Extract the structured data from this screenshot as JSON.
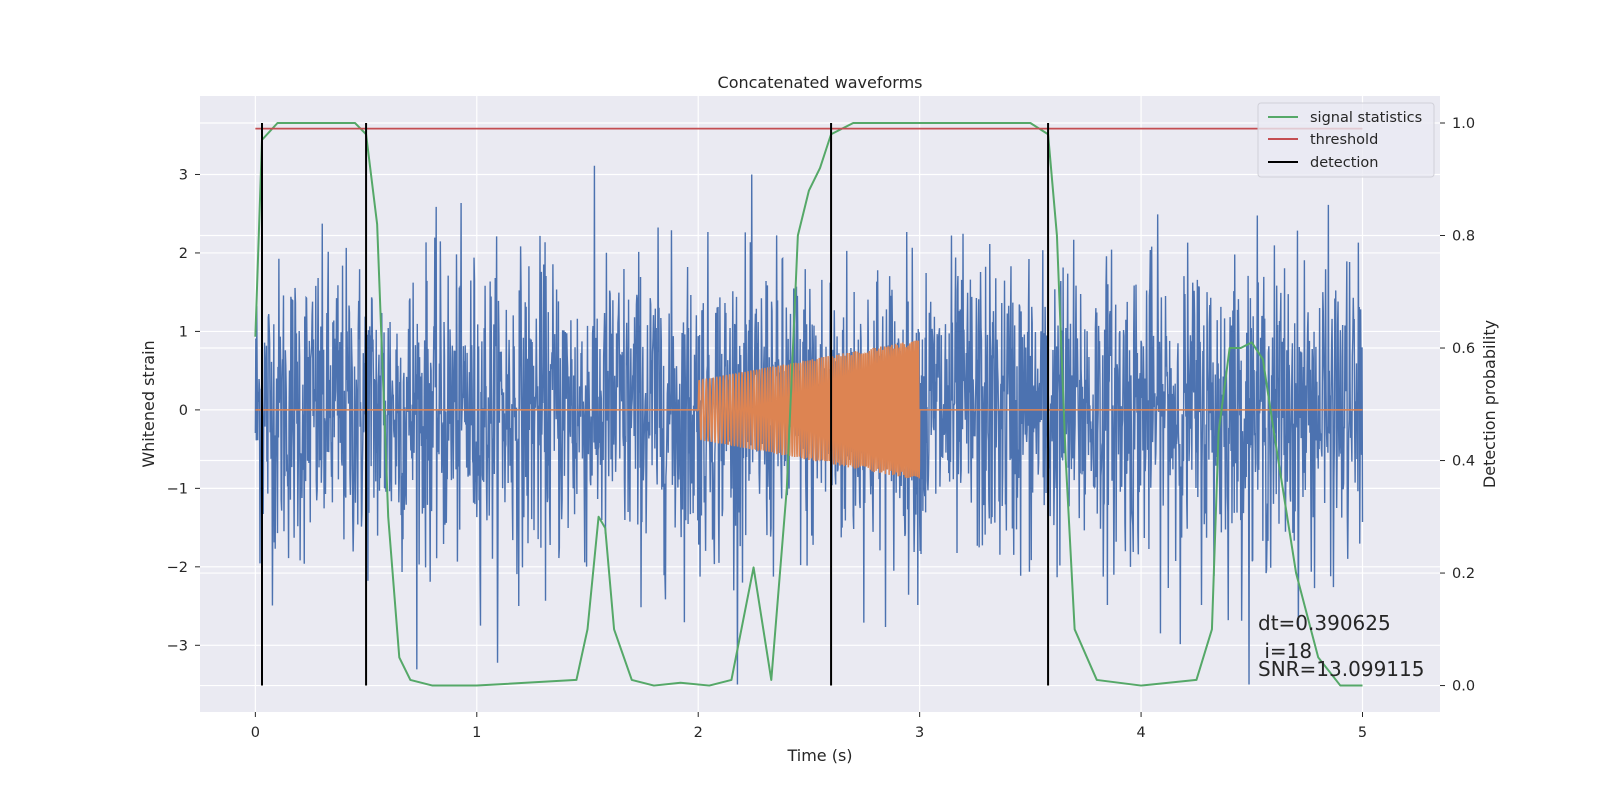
{
  "chart_data": {
    "type": "line",
    "title": "Concatenated waveforms",
    "xlabel": "Time (s)",
    "ylabel_left": "Whitened strain",
    "ylabel_right": "Detection probability",
    "xlim": [
      -0.25,
      5.35
    ],
    "ylim_left": [
      -3.85,
      4.0
    ],
    "ylim_right": [
      -0.047,
      1.048
    ],
    "xticks": [
      0,
      1,
      2,
      3,
      4,
      5
    ],
    "yticks_left": [
      -3,
      -2,
      -1,
      0,
      1,
      2,
      3
    ],
    "yticks_right": [
      0.0,
      0.2,
      0.4,
      0.6,
      0.8,
      1.0
    ],
    "grid": true,
    "legend_position": "top-right",
    "colors": {
      "plot_bg": "#eaeaf2",
      "grid": "#ffffff",
      "strain": "#4c72b0",
      "template": "#dd8452",
      "signal_statistics": "#55a868",
      "threshold": "#c44e52",
      "detection": "#000000"
    },
    "series": [
      {
        "name": "",
        "role": "whitened strain",
        "x_range": [
          0,
          5
        ],
        "description": "noise-like whitened strain, roughly within -3.5 to 3.6"
      },
      {
        "name": "",
        "role": "injected signal",
        "x": [
          0,
          2.0,
          2.0,
          3.0,
          3.0,
          5.0
        ],
        "amplitude": [
          0,
          0,
          0.38,
          0.9,
          0,
          0
        ]
      },
      {
        "name": "signal statistics",
        "axis": "right",
        "x": [
          0,
          0.03,
          0.1,
          0.45,
          0.5,
          0.55,
          0.6,
          0.65,
          0.7,
          0.8,
          1.0,
          1.45,
          1.5,
          1.55,
          1.58,
          1.62,
          1.7,
          1.8,
          1.92,
          2.05,
          2.15,
          2.25,
          2.33,
          2.4,
          2.45,
          2.5,
          2.55,
          2.6,
          2.7,
          3.5,
          3.58,
          3.62,
          3.66,
          3.7,
          3.8,
          4.0,
          4.25,
          4.32,
          4.35,
          4.4,
          4.45,
          4.5,
          4.55,
          4.6,
          4.7,
          4.8,
          4.9,
          5.0
        ],
        "y": [
          0.62,
          0.97,
          1.0,
          1.0,
          0.98,
          0.82,
          0.3,
          0.05,
          0.01,
          0.0,
          0.0,
          0.01,
          0.1,
          0.3,
          0.28,
          0.1,
          0.01,
          0.0,
          0.005,
          0.0,
          0.01,
          0.21,
          0.01,
          0.35,
          0.8,
          0.88,
          0.92,
          0.98,
          1.0,
          1.0,
          0.98,
          0.8,
          0.4,
          0.1,
          0.01,
          0.0,
          0.01,
          0.1,
          0.45,
          0.6,
          0.6,
          0.61,
          0.58,
          0.45,
          0.2,
          0.05,
          0.0,
          0.0
        ]
      },
      {
        "name": "threshold",
        "axis": "right",
        "x": [
          0,
          5
        ],
        "y": [
          0.99,
          0.99
        ]
      },
      {
        "name": "detection",
        "type": "vertical_lines",
        "x": [
          0.03,
          0.5,
          2.6,
          3.58
        ]
      }
    ],
    "annotations": [
      "dt=0.390625",
      " i=18",
      "SNR=13.099115"
    ]
  }
}
